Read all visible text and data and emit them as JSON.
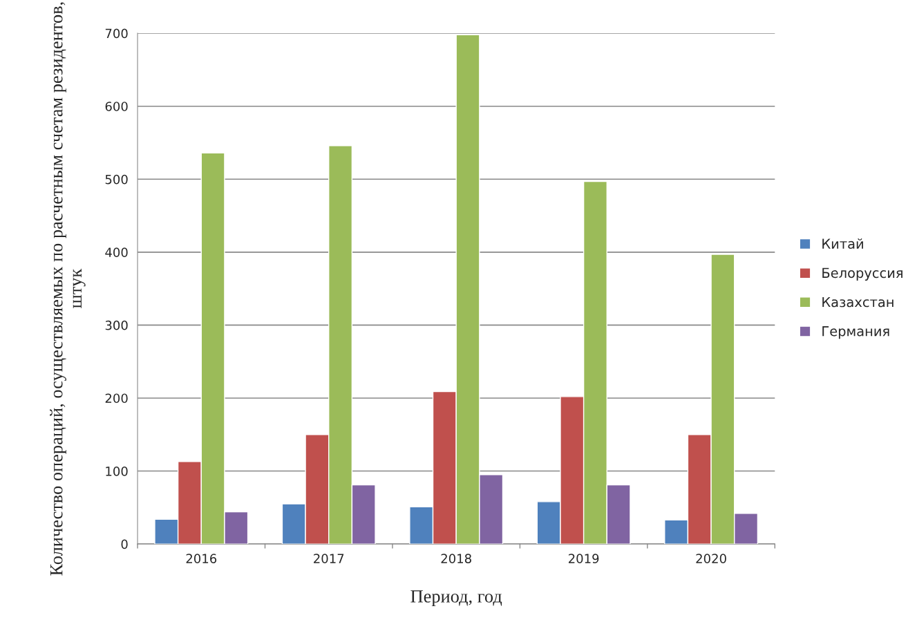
{
  "chart_data": {
    "type": "bar",
    "xlabel": "Период, год",
    "ylabel": "Количество операций, осуществляемых по расчетным счетам резидентов, штук",
    "categories": [
      "2016",
      "2017",
      "2018",
      "2019",
      "2020"
    ],
    "series": [
      {
        "name": "Китай",
        "color": "#4f81bd",
        "values": [
          34,
          55,
          51,
          58,
          33
        ]
      },
      {
        "name": "Белоруссия",
        "color": "#c0504d",
        "values": [
          113,
          150,
          209,
          202,
          150
        ]
      },
      {
        "name": "Казахстан",
        "color": "#9bbb59",
        "values": [
          536,
          546,
          698,
          497,
          397
        ]
      },
      {
        "name": "Германия",
        "color": "#8064a2",
        "values": [
          44,
          81,
          95,
          81,
          42
        ]
      }
    ],
    "ylim": [
      0,
      700
    ],
    "yticks": [
      0,
      100,
      200,
      300,
      400,
      500,
      600,
      700
    ],
    "grid": "y",
    "legend": "right"
  }
}
